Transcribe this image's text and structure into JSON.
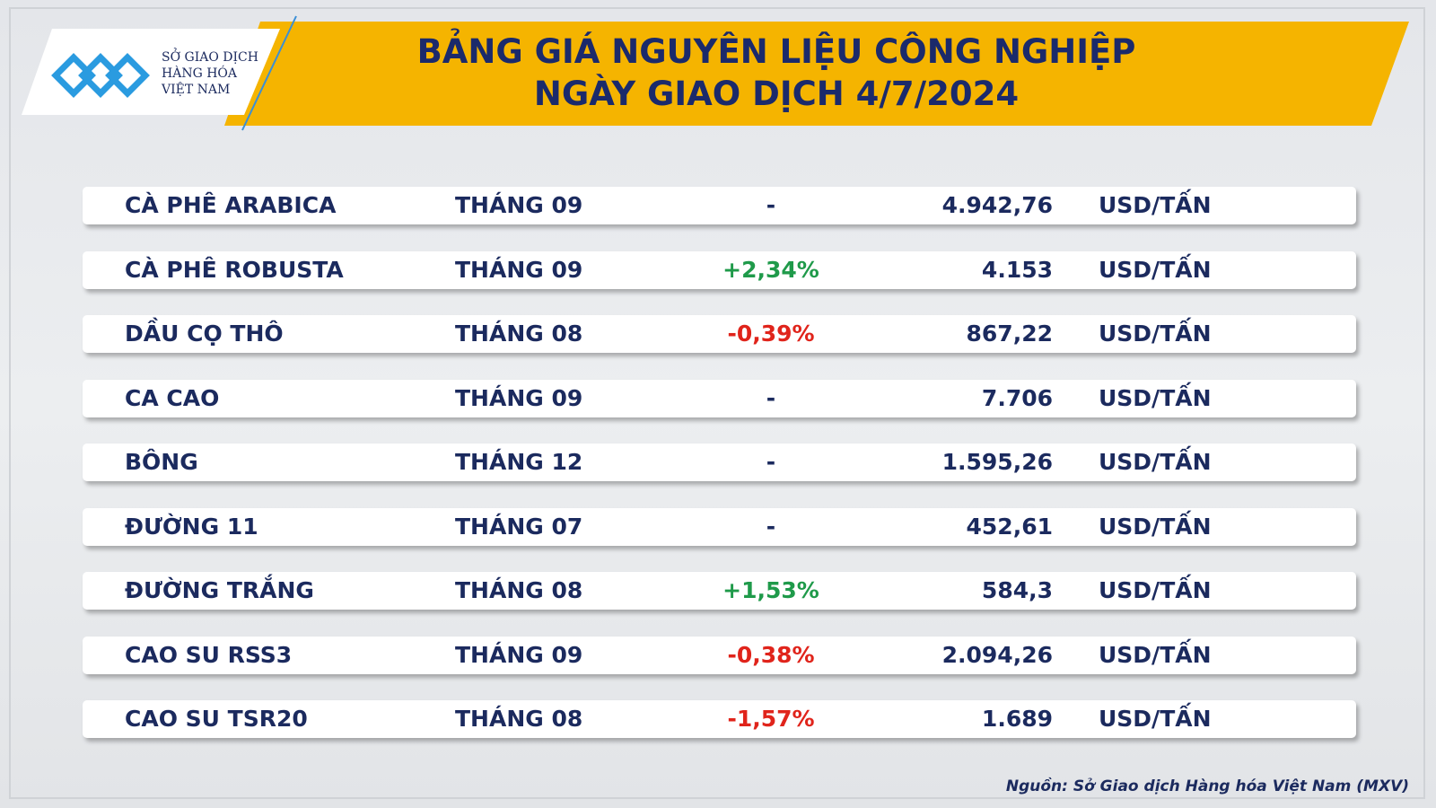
{
  "header": {
    "logo": [
      "SỞ GIAO DỊCH",
      "HÀNG HÓA",
      "VIỆT NAM"
    ],
    "title": [
      "BẢNG GIÁ NGUYÊN LIỆU CÔNG NGHIỆP",
      "NGÀY GIAO DỊCH 4/7/2024"
    ]
  },
  "table": {
    "rows": [
      [
        "CÀ PHÊ ARABICA",
        "THÁNG 09",
        "-",
        "4.942,76",
        "USD/TẤN"
      ],
      [
        "CÀ PHÊ ROBUSTA",
        "THÁNG 09",
        "+2,34%",
        "4.153",
        "USD/TẤN"
      ],
      [
        "DẦU CỌ THÔ",
        "THÁNG 08",
        "-0,39%",
        "867,22",
        "USD/TẤN"
      ],
      [
        "CA CAO",
        "THÁNG 09",
        "-",
        "7.706",
        "USD/TẤN"
      ],
      [
        "BÔNG",
        "THÁNG 12",
        "-",
        "1.595,26",
        "USD/TẤN"
      ],
      [
        "ĐƯỜNG 11",
        "THÁNG 07",
        "-",
        "452,61",
        "USD/TẤN"
      ],
      [
        "ĐƯỜNG TRẮNG",
        "THÁNG 08",
        "+1,53%",
        "584,3",
        "USD/TẤN"
      ],
      [
        "CAO SU RSS3",
        "THÁNG 09",
        "-0,38%",
        "2.094,26",
        "USD/TẤN"
      ],
      [
        "CAO SU TSR20",
        "THÁNG 08",
        "-1,57%",
        "1.689",
        "USD/TẤN"
      ]
    ]
  },
  "source": "Nguồn: Sở Giao dịch Hàng hóa Việt Nam (MXV)"
}
